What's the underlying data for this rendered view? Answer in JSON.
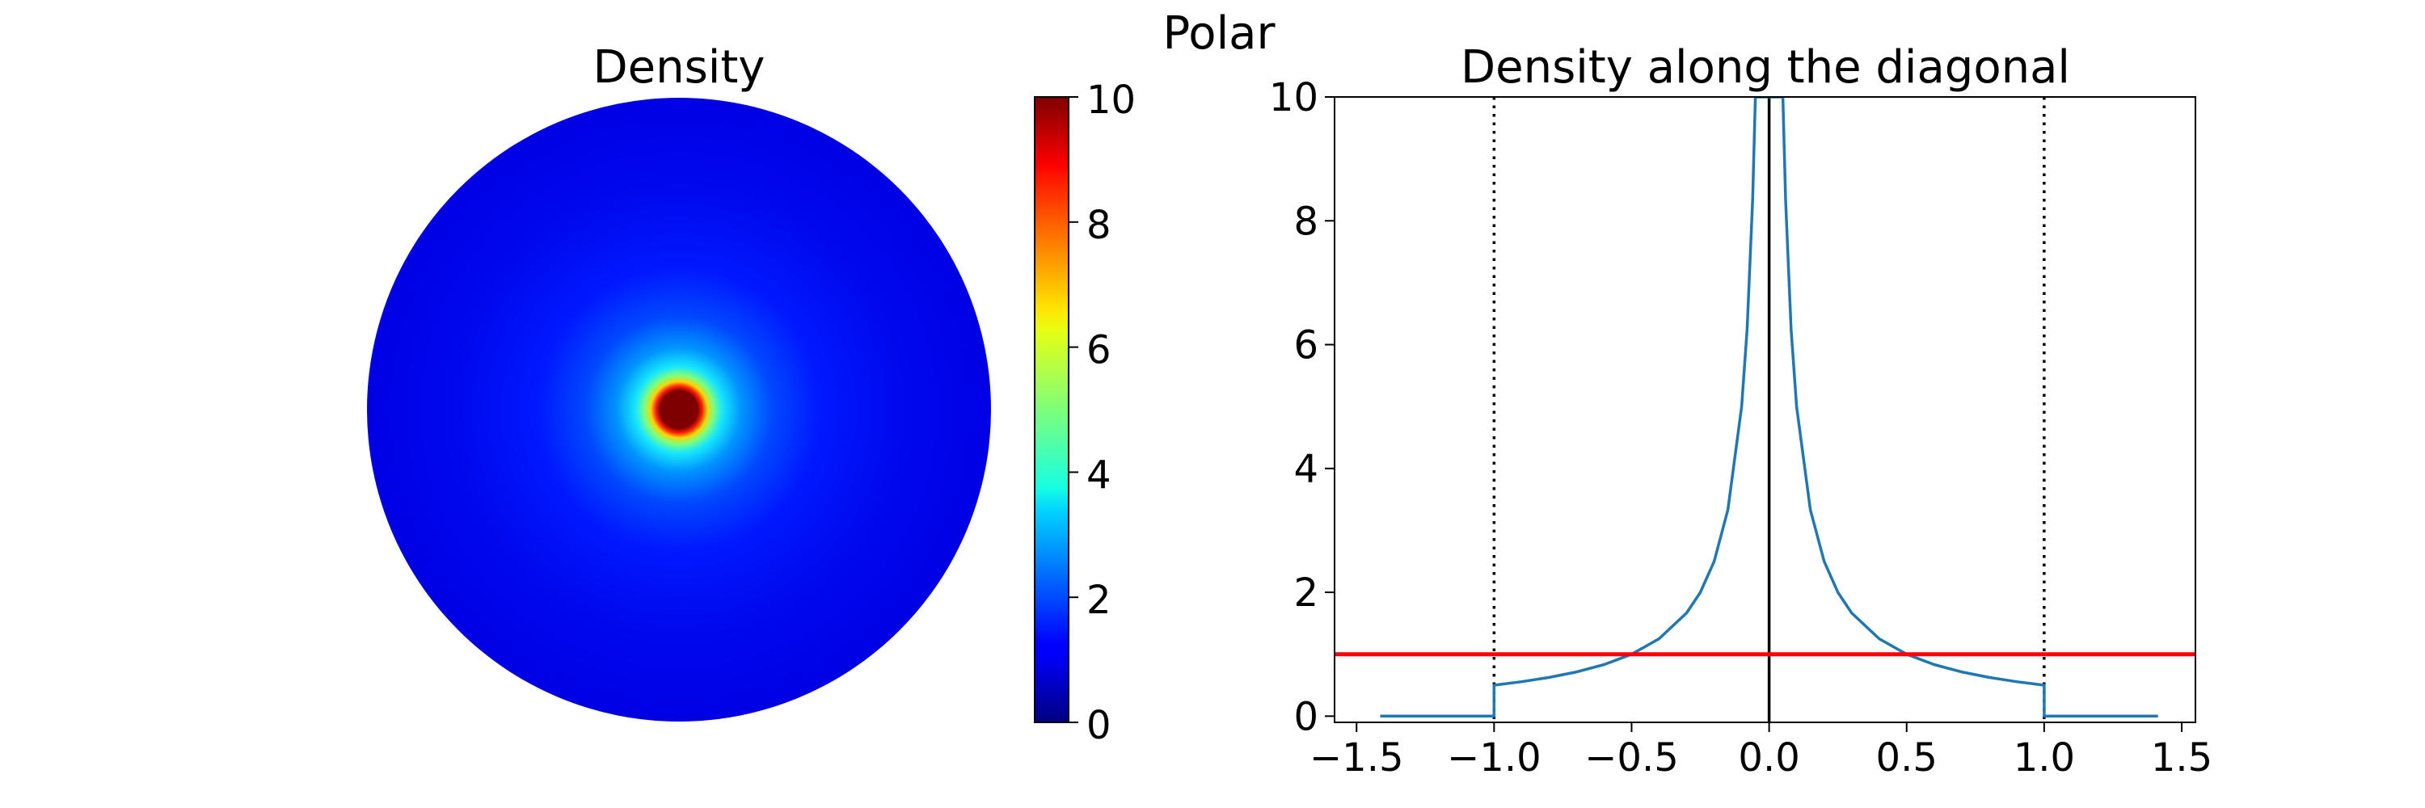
{
  "suptitle": "Polar",
  "chart_data": [
    {
      "type": "heatmap",
      "title": "Density",
      "shape": "disk",
      "colormap": "jet",
      "colorbar": {
        "min": 0,
        "max": 10,
        "ticks": [
          "0",
          "2",
          "4",
          "6",
          "8",
          "10"
        ]
      },
      "disk_radius": 1.0,
      "peak_at_center": 10
    },
    {
      "type": "line",
      "title": "Density along the diagonal",
      "xlim": [
        -1.58,
        1.55
      ],
      "ylim": [
        -0.1,
        10
      ],
      "xticks": [
        "−1.5",
        "−1.0",
        "−0.5",
        "0.0",
        "0.5",
        "1.0",
        "1.5"
      ],
      "yticks": [
        "0",
        "2",
        "4",
        "6",
        "8",
        "10"
      ],
      "series": [
        {
          "color": "#1f77b4",
          "x": [
            -1.414,
            -1.0,
            -1.0,
            -0.9,
            -0.8,
            -0.7,
            -0.6,
            -0.5,
            -0.4,
            -0.3,
            -0.25,
            -0.2,
            -0.15,
            -0.1,
            -0.08,
            -0.06,
            -0.05,
            0.05,
            0.06,
            0.08,
            0.1,
            0.15,
            0.2,
            0.25,
            0.3,
            0.4,
            0.5,
            0.6,
            0.7,
            0.8,
            0.9,
            1.0,
            1.0,
            1.414
          ],
          "y": [
            0,
            0,
            0.5,
            0.556,
            0.625,
            0.714,
            0.833,
            1.0,
            1.25,
            1.667,
            2.0,
            2.5,
            3.333,
            5.0,
            6.25,
            8.333,
            10.0,
            10.0,
            8.333,
            6.25,
            5.0,
            3.333,
            2.5,
            2.0,
            1.667,
            1.25,
            1.0,
            0.833,
            0.714,
            0.625,
            0.556,
            0.5,
            0,
            0
          ]
        }
      ],
      "hlines": [
        {
          "y": 1.0,
          "color": "#ff0000"
        }
      ],
      "vlines": [
        {
          "x": -1.0,
          "style": "dotted",
          "color": "#000000"
        },
        {
          "x": 1.0,
          "style": "dotted",
          "color": "#000000"
        },
        {
          "x": 0.0,
          "style": "solid",
          "color": "#000000"
        }
      ]
    }
  ]
}
